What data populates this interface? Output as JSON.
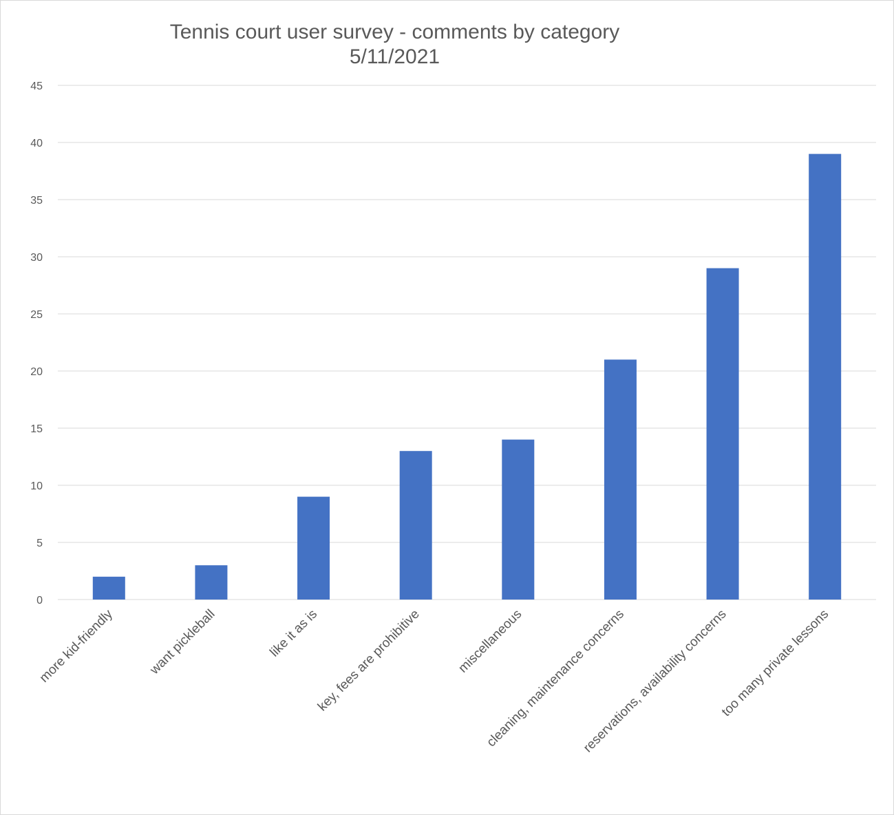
{
  "chart_data": {
    "type": "bar",
    "title": "Tennis court user survey - comments by category",
    "subtitle": "5/11/2021",
    "xlabel": "",
    "ylabel": "",
    "ylim": [
      0,
      45
    ],
    "yticks": [
      0,
      5,
      10,
      15,
      20,
      25,
      30,
      35,
      40,
      45
    ],
    "grid": true,
    "legend": "none",
    "categories": [
      "more kid-friendly",
      "want pickleball",
      "like it as is",
      "key, fees are prohibitive",
      "miscellaneous",
      "cleaning, maintenance concerns",
      "reservations, availability concerns",
      "too many private lessons"
    ],
    "values": [
      2,
      3,
      9,
      13,
      14,
      21,
      29,
      39
    ],
    "colors": {
      "bar": "#4472c4",
      "grid": "#d9d9d9",
      "text": "#595959"
    }
  }
}
